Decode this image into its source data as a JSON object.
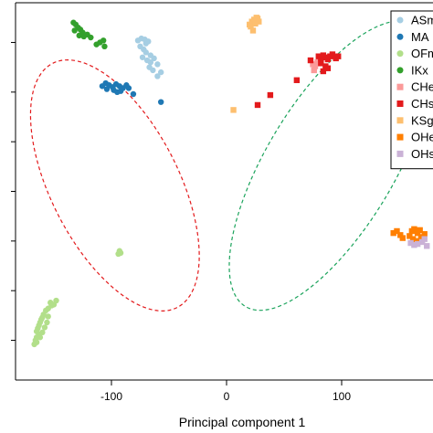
{
  "chart_data": {
    "type": "scatter",
    "title": "",
    "xlabel": "Principal component 1",
    "ylabel": "",
    "xlim": [
      -180,
      175
    ],
    "ylim": [
      -40,
      340
    ],
    "x_ticks": [
      -100,
      0,
      100
    ],
    "x_tick_labels": [
      "-100",
      "0",
      "100"
    ],
    "grid": false,
    "legend_position": "top-right",
    "series": [
      {
        "name": "ASm",
        "color": "#a6cee3",
        "marker": "circle",
        "points": [
          [
            -77,
            302
          ],
          [
            -74,
            304
          ],
          [
            -71,
            303
          ],
          [
            -68,
            301
          ],
          [
            -75,
            296
          ],
          [
            -72,
            293
          ],
          [
            -70,
            290
          ],
          [
            -66,
            287
          ],
          [
            -73,
            285
          ],
          [
            -69,
            282
          ],
          [
            -66,
            280
          ],
          [
            -63,
            284
          ],
          [
            -60,
            278
          ],
          [
            -67,
            275
          ],
          [
            -64,
            272
          ],
          [
            -57,
            270
          ],
          [
            -60,
            266
          ],
          [
            -70,
            299
          ]
        ]
      },
      {
        "name": "MA",
        "color": "#1f78b4",
        "marker": "circle",
        "points": [
          [
            -108,
            256
          ],
          [
            -105,
            259
          ],
          [
            -102,
            257
          ],
          [
            -99,
            255
          ],
          [
            -96,
            258
          ],
          [
            -93,
            256
          ],
          [
            -90,
            254
          ],
          [
            -87,
            257
          ],
          [
            -104,
            253
          ],
          [
            -98,
            252
          ],
          [
            -92,
            251
          ],
          [
            -85,
            254
          ],
          [
            -81,
            248
          ],
          [
            -95,
            250
          ],
          [
            -57,
            240
          ]
        ]
      },
      {
        "name": "OFm",
        "color": "#b2df8a",
        "marker": "circle",
        "points": [
          [
            -93,
            90
          ],
          [
            -94,
            87
          ],
          [
            -92,
            88
          ],
          [
            -153,
            38
          ],
          [
            -152,
            35
          ],
          [
            -155,
            32
          ],
          [
            -157,
            30
          ],
          [
            -159,
            26
          ],
          [
            -160,
            23
          ],
          [
            -161,
            21
          ],
          [
            -162,
            18
          ],
          [
            -163,
            15
          ],
          [
            -164,
            12
          ],
          [
            -165,
            9
          ],
          [
            -163,
            6
          ],
          [
            -165,
            3
          ],
          [
            -166,
            0
          ],
          [
            -167,
            -4
          ],
          [
            -165,
            -2
          ],
          [
            -162,
            3
          ],
          [
            -160,
            8
          ],
          [
            -158,
            13
          ],
          [
            -156,
            18
          ],
          [
            -155,
            24
          ],
          [
            -150,
            36
          ],
          [
            -148,
            40
          ]
        ]
      },
      {
        "name": "IKx",
        "color": "#33a02c",
        "marker": "circle",
        "points": [
          [
            -133,
            320
          ],
          [
            -131,
            318
          ],
          [
            -129,
            315
          ],
          [
            -127,
            313
          ],
          [
            -125,
            310
          ],
          [
            -128,
            307
          ],
          [
            -124,
            306
          ],
          [
            -121,
            308
          ],
          [
            -118,
            305
          ],
          [
            -132,
            312
          ],
          [
            -113,
            298
          ],
          [
            -110,
            300
          ],
          [
            -106,
            296
          ],
          [
            -107,
            302
          ]
        ]
      },
      {
        "name": "CHe",
        "color": "#fb9a99",
        "marker": "square",
        "points": [
          [
            75,
            278
          ],
          [
            77,
            276
          ],
          [
            79,
            280
          ],
          [
            76,
            272
          ]
        ]
      },
      {
        "name": "CHs",
        "color": "#e31a1c",
        "marker": "square",
        "points": [
          [
            73,
            282
          ],
          [
            80,
            286
          ],
          [
            82,
            284
          ],
          [
            84,
            287
          ],
          [
            86,
            285
          ],
          [
            88,
            283
          ],
          [
            90,
            286
          ],
          [
            92,
            288
          ],
          [
            95,
            284
          ],
          [
            97,
            286
          ],
          [
            82,
            279
          ],
          [
            86,
            276
          ],
          [
            84,
            271
          ],
          [
            88,
            274
          ],
          [
            38,
            247
          ],
          [
            27,
            237
          ],
          [
            61,
            262
          ]
        ]
      },
      {
        "name": "KSg",
        "color": "#fdbf6f",
        "marker": "square",
        "points": [
          [
            20,
            318
          ],
          [
            22,
            321
          ],
          [
            24,
            323
          ],
          [
            26,
            325
          ],
          [
            28,
            321
          ],
          [
            21,
            316
          ],
          [
            25,
            319
          ],
          [
            27,
            324
          ],
          [
            23,
            312
          ],
          [
            6,
            232
          ]
        ]
      },
      {
        "name": "OHe",
        "color": "#ff7f00",
        "marker": "square",
        "points": [
          [
            145,
            108
          ],
          [
            148,
            110
          ],
          [
            151,
            106
          ],
          [
            153,
            103
          ],
          [
            159,
            105
          ],
          [
            161,
            110
          ],
          [
            163,
            112
          ],
          [
            166,
            108
          ],
          [
            169,
            104
          ],
          [
            165,
            100
          ],
          [
            162,
            102
          ],
          [
            172,
            107
          ],
          [
            168,
            111
          ]
        ]
      },
      {
        "name": "OHs",
        "color": "#cab2d6",
        "marker": "square",
        "points": [
          [
            160,
            98
          ],
          [
            163,
            96
          ],
          [
            170,
            99
          ],
          [
            174,
            95
          ],
          [
            172,
            102
          ],
          [
            166,
            97
          ]
        ]
      }
    ],
    "ellipses": [
      {
        "color": "#e31a1c",
        "style": "dashed",
        "cx": -97,
        "cy": 156,
        "rx": 150,
        "ry": 70,
        "angle_deg": 63
      },
      {
        "color": "#1aa35b",
        "style": "dashed",
        "cx": 90,
        "cy": 176,
        "rx": 180,
        "ry": 70,
        "angle_deg": -59
      }
    ]
  }
}
